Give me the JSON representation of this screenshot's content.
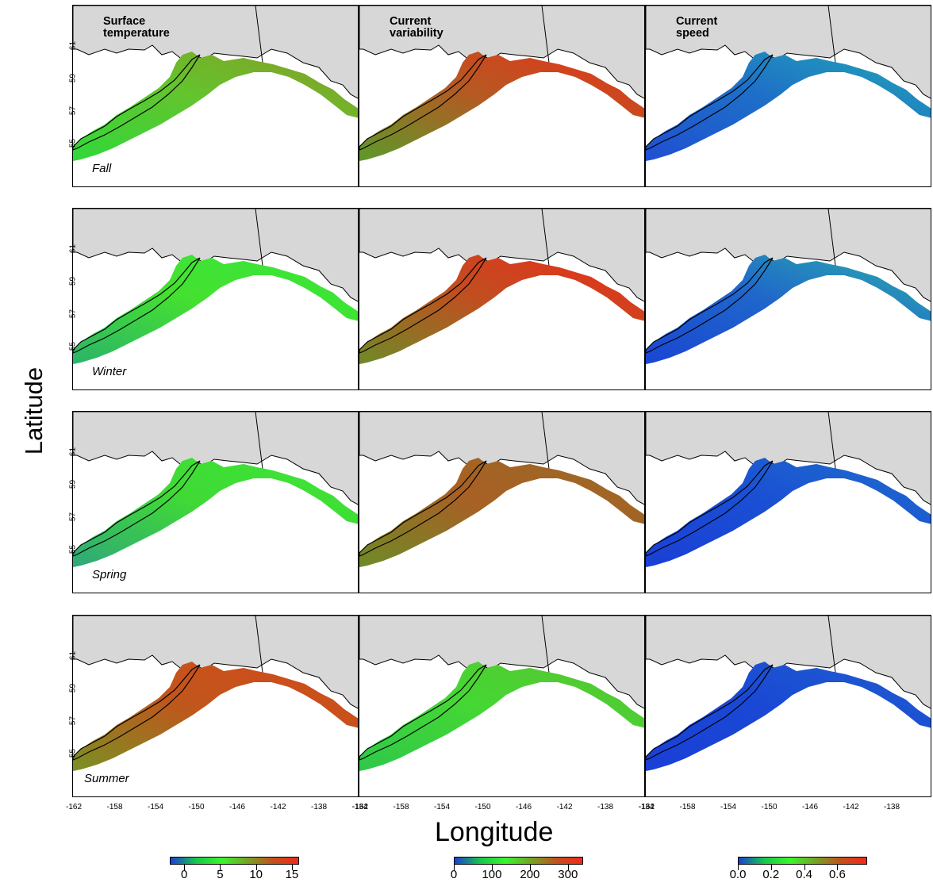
{
  "figure": {
    "column_titles": [
      "Surface\ntemperature",
      "Current\nvariability",
      "Current\nspeed"
    ],
    "season_labels": [
      "Fall",
      "Winter",
      "Spring",
      "Summer"
    ],
    "ylabel": "Latitude",
    "xlabel": "Longitude",
    "yticks": [
      "61",
      "59",
      "57",
      "55"
    ],
    "xticks": [
      "-162",
      "-158",
      "-154",
      "-150",
      "-146",
      "-142",
      "-138",
      "-134"
    ],
    "colors": {
      "land": "#d7d7d7",
      "coast_line": "#000000",
      "ocean": "#ffffff"
    }
  },
  "colorbars": [
    {
      "name": "temperature",
      "ticks": [
        "0",
        "5",
        "10",
        "15"
      ],
      "range": [
        -2,
        16
      ],
      "colors": [
        "#1a3fd6",
        "#17c64a",
        "#3cf52a",
        "#74a423",
        "#c4511c",
        "#f2291a"
      ]
    },
    {
      "name": "variability",
      "ticks": [
        "0",
        "100",
        "200",
        "300"
      ],
      "range": [
        0,
        340
      ],
      "colors": [
        "#1a3fd6",
        "#17c64a",
        "#3cf52a",
        "#74a423",
        "#c4511c",
        "#f2291a"
      ]
    },
    {
      "name": "speed",
      "ticks": [
        "0.0",
        "0.2",
        "0.4",
        "0.6"
      ],
      "range": [
        0,
        0.78
      ],
      "colors": [
        "#1a3fd6",
        "#17c64a",
        "#3cf52a",
        "#74a423",
        "#c4511c",
        "#f2291a"
      ]
    }
  ],
  "panel_fills": [
    {
      "season": "Fall",
      "temperature": {
        "west": "#30d83a",
        "mid": "#63c42e",
        "east": "#8a9a25"
      },
      "variability": {
        "west": "#5c9a2a",
        "mid": "#b45a22",
        "east": "#e8321a"
      },
      "speed": {
        "west": "#1f4fd2",
        "mid": "#1e6fc8",
        "east": "#22a8b5"
      }
    },
    {
      "season": "Winter",
      "temperature": {
        "west": "#2bb36a",
        "mid": "#45e030",
        "east": "#36e83a"
      },
      "variability": {
        "west": "#6e8a28",
        "mid": "#c04f20",
        "east": "#ea2d1a"
      },
      "speed": {
        "west": "#1a45d3",
        "mid": "#1f66cb",
        "east": "#2bb0ab"
      }
    },
    {
      "season": "Spring",
      "temperature": {
        "west": "#2fa87a",
        "mid": "#40d836",
        "east": "#3ce834"
      },
      "variability": {
        "west": "#6e8a28",
        "mid": "#a86024",
        "east": "#9a6a26"
      },
      "speed": {
        "west": "#1a3fd6",
        "mid": "#1a4fd4",
        "east": "#1f6fcc"
      }
    },
    {
      "season": "Summer",
      "temperature": {
        "west": "#7a9024",
        "mid": "#c0561c",
        "east": "#d44a1a"
      },
      "variability": {
        "west": "#2ec84a",
        "mid": "#45d734",
        "east": "#58c430"
      },
      "speed": {
        "west": "#1a3fd6",
        "mid": "#1a48d5",
        "east": "#1f5fce"
      }
    }
  ]
}
